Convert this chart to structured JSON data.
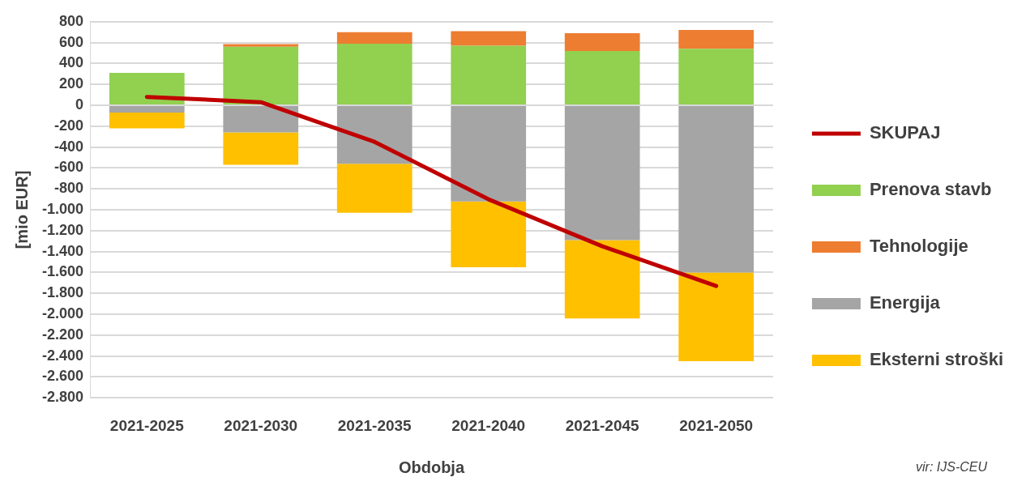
{
  "chart_data": {
    "type": "bar",
    "stacked": true,
    "xlabel": "Obdobja",
    "ylabel": "[mio EUR]",
    "categories": [
      "2021-2025",
      "2021-2030",
      "2021-2035",
      "2021-2040",
      "2021-2045",
      "2021-2050"
    ],
    "series": [
      {
        "name": "Prenova stavb",
        "color": "#92d050",
        "values": [
          310,
          560,
          590,
          570,
          520,
          540
        ]
      },
      {
        "name": "Tehnologije",
        "color": "#ed7d31",
        "values": [
          0,
          25,
          110,
          140,
          170,
          180
        ]
      },
      {
        "name": "Energija",
        "color": "#a5a5a5",
        "values": [
          -70,
          -260,
          -560,
          -920,
          -1290,
          -1600
        ]
      },
      {
        "name": "Eksterni stroški",
        "color": "#ffc000",
        "values": [
          -150,
          -310,
          -470,
          -630,
          -750,
          -850
        ]
      },
      {
        "name": "SKUPAJ",
        "type": "line",
        "color": "#c00000",
        "values": [
          80,
          30,
          -350,
          -900,
          -1350,
          -1730
        ]
      }
    ],
    "ylim": [
      -2800,
      800
    ],
    "yticks": [
      800,
      600,
      400,
      200,
      0,
      -200,
      -400,
      -600,
      -800,
      {
        "value": -1000,
        "label": "-1.000"
      },
      {
        "value": -1200,
        "label": "-1.200"
      },
      {
        "value": -1400,
        "label": "-1.400"
      },
      {
        "value": -1600,
        "label": "-1.600"
      },
      {
        "value": -1800,
        "label": "-1.800"
      },
      {
        "value": -2000,
        "label": "-2.000"
      },
      {
        "value": -2200,
        "label": "-2.200"
      },
      {
        "value": -2400,
        "label": "-2.400"
      },
      {
        "value": -2600,
        "label": "-2.600"
      },
      {
        "value": -2800,
        "label": "-2.800"
      }
    ],
    "grid": "y",
    "legend": "right",
    "marker": "none",
    "annotations": [
      "vir: IJS-CEU"
    ]
  }
}
